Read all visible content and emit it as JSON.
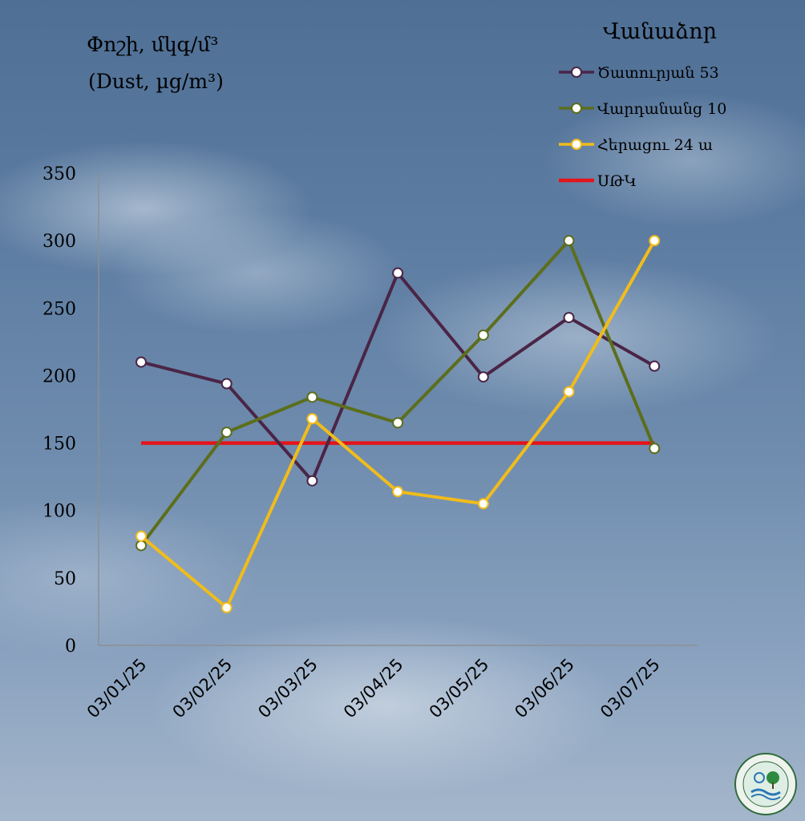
{
  "chart_data": {
    "type": "line",
    "ylabel": "Փոշի, մկգ/մ³",
    "ylabel_en": "(Dust, µg/m³)",
    "legend_title": "Վանաձոր",
    "categories": [
      "03/01/25",
      "03/02/25",
      "03/03/25",
      "03/04/25",
      "03/05/25",
      "03/06/25",
      "03/07/25"
    ],
    "ylim": [
      0,
      350
    ],
    "yticks": [
      0,
      50,
      100,
      150,
      200,
      250,
      300,
      350
    ],
    "legend_position": "top-right",
    "series": [
      {
        "name": "Ծատուրյան 53",
        "color": "#4a2546",
        "values": [
          210,
          194,
          122,
          276,
          199,
          243,
          207
        ]
      },
      {
        "name": "Վարդանանց 10",
        "color": "#5c6e1c",
        "values": [
          74,
          158,
          184,
          165,
          230,
          300,
          146
        ]
      },
      {
        "name": "Հերացու 24 ա",
        "color": "#f1bc1b",
        "values": [
          81,
          28,
          168,
          114,
          105,
          188,
          300
        ]
      }
    ],
    "reference_line": {
      "name": "ՍԹԿ",
      "color": "#e3141a",
      "value": 150
    }
  }
}
